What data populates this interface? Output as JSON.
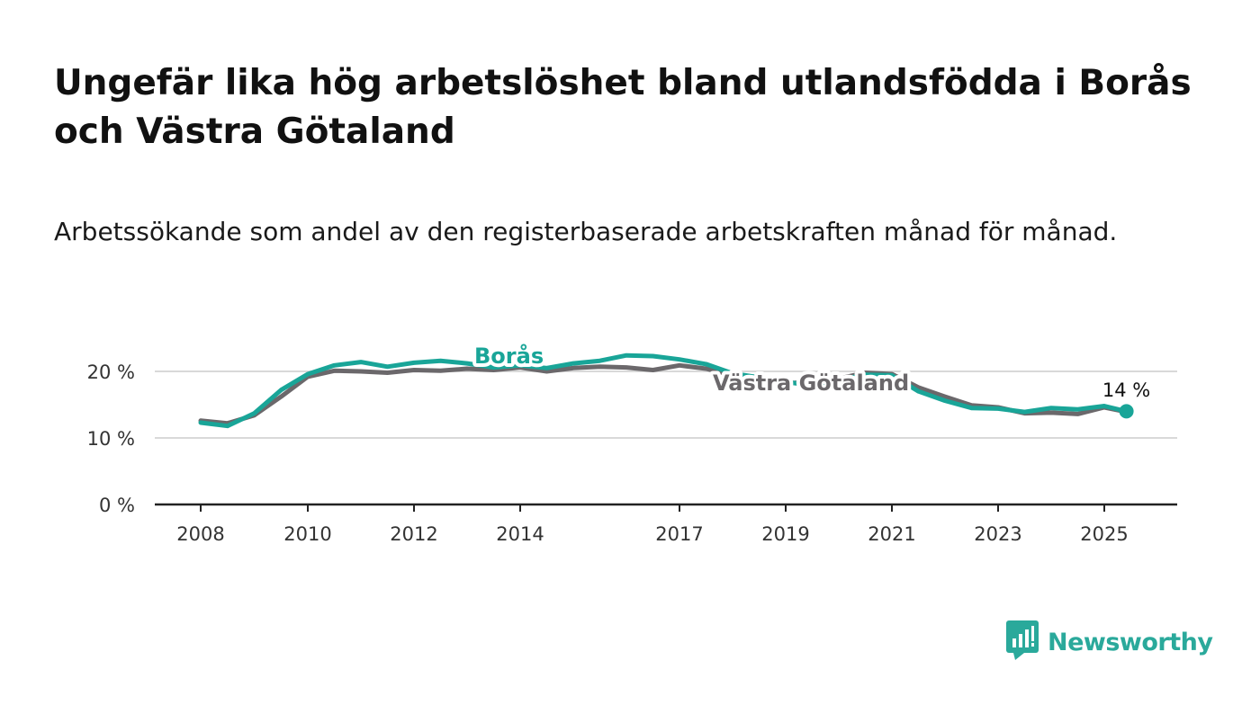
{
  "title": "Ungefär lika hög arbetslöshet bland utlandsfödda i Borås och Västra Götaland",
  "subtitle": "Arbetssökande som andel av den registerbaserade arbetskraften månad för månad.",
  "brand": {
    "name": "Newsworthy",
    "color": "#2aa99b",
    "icon": "bar-chart-speech-bubble-icon"
  },
  "chart_data": {
    "type": "line",
    "x_ticks": [
      "2008",
      "2010",
      "2012",
      "2014",
      "2017",
      "2019",
      "2021",
      "2023",
      "2025"
    ],
    "y_ticks": [
      "0 %",
      "10 %",
      "20 %"
    ],
    "ylim": [
      0,
      24
    ],
    "grid": true,
    "end_label": "14 %",
    "series": [
      {
        "name": "Västra Götaland",
        "color": "#6b686b",
        "points": [
          [
            "2008-01",
            12.6
          ],
          [
            "2008-07",
            12.2
          ],
          [
            "2009-01",
            13.4
          ],
          [
            "2009-07",
            16.2
          ],
          [
            "2010-01",
            19.2
          ],
          [
            "2010-07",
            20.1
          ],
          [
            "2011-01",
            20.0
          ],
          [
            "2011-07",
            19.8
          ],
          [
            "2012-01",
            20.2
          ],
          [
            "2012-07",
            20.1
          ],
          [
            "2013-01",
            20.4
          ],
          [
            "2013-07",
            20.2
          ],
          [
            "2014-01",
            20.6
          ],
          [
            "2014-07",
            20.0
          ],
          [
            "2015-01",
            20.5
          ],
          [
            "2015-07",
            20.7
          ],
          [
            "2016-01",
            20.6
          ],
          [
            "2016-07",
            20.2
          ],
          [
            "2017-01",
            20.9
          ],
          [
            "2017-07",
            20.4
          ],
          [
            "2018-01",
            19.4
          ],
          [
            "2018-07",
            18.9
          ],
          [
            "2019-01",
            18.2
          ],
          [
            "2019-07",
            18.4
          ],
          [
            "2020-01",
            18.9
          ],
          [
            "2020-07",
            19.8
          ],
          [
            "2021-01",
            19.6
          ],
          [
            "2021-07",
            17.6
          ],
          [
            "2022-01",
            16.2
          ],
          [
            "2022-07",
            14.9
          ],
          [
            "2023-01",
            14.6
          ],
          [
            "2023-07",
            13.7
          ],
          [
            "2024-01",
            13.8
          ],
          [
            "2024-07",
            13.6
          ],
          [
            "2025-01",
            14.6
          ],
          [
            "2025-06",
            13.9
          ]
        ]
      },
      {
        "name": "Borås",
        "color": "#19a598",
        "points": [
          [
            "2008-01",
            12.3
          ],
          [
            "2008-07",
            11.8
          ],
          [
            "2009-01",
            13.7
          ],
          [
            "2009-07",
            17.2
          ],
          [
            "2010-01",
            19.6
          ],
          [
            "2010-07",
            20.9
          ],
          [
            "2011-01",
            21.4
          ],
          [
            "2011-07",
            20.7
          ],
          [
            "2012-01",
            21.3
          ],
          [
            "2012-07",
            21.6
          ],
          [
            "2013-01",
            21.2
          ],
          [
            "2013-07",
            20.6
          ],
          [
            "2014-01",
            20.9
          ],
          [
            "2014-07",
            20.5
          ],
          [
            "2015-01",
            21.2
          ],
          [
            "2015-07",
            21.6
          ],
          [
            "2016-01",
            22.4
          ],
          [
            "2016-07",
            22.3
          ],
          [
            "2017-01",
            21.8
          ],
          [
            "2017-07",
            21.1
          ],
          [
            "2018-01",
            19.7
          ],
          [
            "2018-07",
            19.1
          ],
          [
            "2019-01",
            18.4
          ],
          [
            "2019-07",
            17.9
          ],
          [
            "2020-01",
            18.7
          ],
          [
            "2020-07",
            19.5
          ],
          [
            "2021-01",
            19.4
          ],
          [
            "2021-07",
            17.0
          ],
          [
            "2022-01",
            15.6
          ],
          [
            "2022-07",
            14.5
          ],
          [
            "2023-01",
            14.4
          ],
          [
            "2023-07",
            13.9
          ],
          [
            "2024-01",
            14.5
          ],
          [
            "2024-07",
            14.3
          ],
          [
            "2025-01",
            14.8
          ],
          [
            "2025-06",
            14.0
          ]
        ]
      }
    ]
  }
}
